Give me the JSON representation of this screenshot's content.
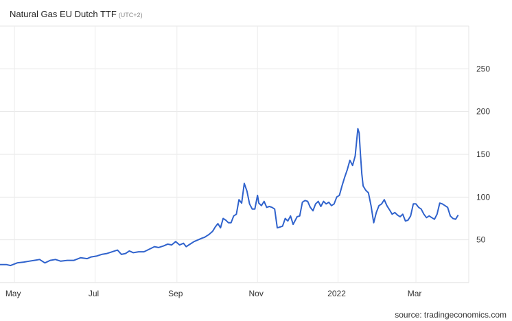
{
  "chart_data": {
    "type": "line",
    "title": "Natural Gas EU Dutch TTF",
    "timezone": "(UTC+2)",
    "source": "source: tradingeconomics.com",
    "line_color": "#2f62cc",
    "grid": true,
    "y_axis_side": "right",
    "ylim": [
      0,
      300
    ],
    "y_ticks": [
      50,
      100,
      150,
      200,
      250
    ],
    "x_ticks": [
      {
        "label": "May",
        "date": "2021-05-01"
      },
      {
        "label": "Jul",
        "date": "2021-07-01"
      },
      {
        "label": "Sep",
        "date": "2021-09-01"
      },
      {
        "label": "Nov",
        "date": "2021-11-01"
      },
      {
        "label": "2022",
        "date": "2022-01-01"
      },
      {
        "label": "Mar",
        "date": "2022-03-01"
      }
    ],
    "xlim": [
      "2021-04-20",
      "2022-04-10"
    ],
    "series": [
      {
        "points": [
          [
            "2021-04-20",
            21
          ],
          [
            "2021-04-25",
            21
          ],
          [
            "2021-04-28",
            20
          ],
          [
            "2021-05-03",
            23
          ],
          [
            "2021-05-08",
            24
          ],
          [
            "2021-05-12",
            25
          ],
          [
            "2021-05-16",
            26
          ],
          [
            "2021-05-20",
            27
          ],
          [
            "2021-05-24",
            23
          ],
          [
            "2021-05-28",
            26
          ],
          [
            "2021-06-01",
            27
          ],
          [
            "2021-06-05",
            25
          ],
          [
            "2021-06-10",
            26
          ],
          [
            "2021-06-15",
            26
          ],
          [
            "2021-06-20",
            29
          ],
          [
            "2021-06-25",
            28
          ],
          [
            "2021-06-28",
            30
          ],
          [
            "2021-07-02",
            31
          ],
          [
            "2021-07-06",
            33
          ],
          [
            "2021-07-10",
            34
          ],
          [
            "2021-07-14",
            36
          ],
          [
            "2021-07-18",
            38
          ],
          [
            "2021-07-21",
            33
          ],
          [
            "2021-07-24",
            34
          ],
          [
            "2021-07-27",
            37
          ],
          [
            "2021-07-30",
            35
          ],
          [
            "2021-08-03",
            36
          ],
          [
            "2021-08-07",
            36
          ],
          [
            "2021-08-11",
            39
          ],
          [
            "2021-08-15",
            42
          ],
          [
            "2021-08-18",
            41
          ],
          [
            "2021-08-22",
            43
          ],
          [
            "2021-08-25",
            45
          ],
          [
            "2021-08-28",
            44
          ],
          [
            "2021-08-31",
            48
          ],
          [
            "2021-09-03",
            44
          ],
          [
            "2021-09-06",
            46
          ],
          [
            "2021-09-08",
            42
          ],
          [
            "2021-09-11",
            45
          ],
          [
            "2021-09-14",
            48
          ],
          [
            "2021-09-17",
            50
          ],
          [
            "2021-09-20",
            52
          ],
          [
            "2021-09-22",
            53
          ],
          [
            "2021-09-25",
            56
          ],
          [
            "2021-09-28",
            60
          ],
          [
            "2021-09-30",
            65
          ],
          [
            "2021-10-02",
            69
          ],
          [
            "2021-10-04",
            64
          ],
          [
            "2021-10-06",
            75
          ],
          [
            "2021-10-08",
            73
          ],
          [
            "2021-10-10",
            70
          ],
          [
            "2021-10-12",
            70
          ],
          [
            "2021-10-14",
            78
          ],
          [
            "2021-10-16",
            80
          ],
          [
            "2021-10-18",
            97
          ],
          [
            "2021-10-20",
            93
          ],
          [
            "2021-10-22",
            116
          ],
          [
            "2021-10-24",
            107
          ],
          [
            "2021-10-26",
            92
          ],
          [
            "2021-10-28",
            86
          ],
          [
            "2021-10-30",
            86
          ],
          [
            "2021-11-01",
            102
          ],
          [
            "2021-11-02",
            93
          ],
          [
            "2021-11-04",
            90
          ],
          [
            "2021-11-06",
            95
          ],
          [
            "2021-11-08",
            88
          ],
          [
            "2021-11-10",
            89
          ],
          [
            "2021-11-12",
            88
          ],
          [
            "2021-11-14",
            86
          ],
          [
            "2021-11-16",
            64
          ],
          [
            "2021-11-18",
            65
          ],
          [
            "2021-11-20",
            66
          ],
          [
            "2021-11-22",
            75
          ],
          [
            "2021-11-24",
            72
          ],
          [
            "2021-11-26",
            78
          ],
          [
            "2021-11-28",
            68
          ],
          [
            "2021-12-01",
            77
          ],
          [
            "2021-12-03",
            78
          ],
          [
            "2021-12-05",
            94
          ],
          [
            "2021-12-07",
            96
          ],
          [
            "2021-12-09",
            95
          ],
          [
            "2021-12-11",
            88
          ],
          [
            "2021-12-13",
            84
          ],
          [
            "2021-12-15",
            92
          ],
          [
            "2021-12-17",
            95
          ],
          [
            "2021-12-19",
            89
          ],
          [
            "2021-12-21",
            95
          ],
          [
            "2021-12-23",
            92
          ],
          [
            "2021-12-25",
            94
          ],
          [
            "2021-12-27",
            90
          ],
          [
            "2021-12-29",
            92
          ],
          [
            "2021-12-31",
            100
          ],
          [
            "2022-01-02",
            102
          ],
          [
            "2022-01-04",
            113
          ],
          [
            "2022-01-06",
            123
          ],
          [
            "2022-01-08",
            132
          ],
          [
            "2022-01-10",
            143
          ],
          [
            "2022-01-12",
            137
          ],
          [
            "2022-01-14",
            148
          ],
          [
            "2022-01-16",
            180
          ],
          [
            "2022-01-17",
            175
          ],
          [
            "2022-01-18",
            150
          ],
          [
            "2022-01-19",
            127
          ],
          [
            "2022-01-20",
            113
          ],
          [
            "2022-01-22",
            108
          ],
          [
            "2022-01-24",
            105
          ],
          [
            "2022-01-26",
            90
          ],
          [
            "2022-01-28",
            70
          ],
          [
            "2022-01-30",
            82
          ],
          [
            "2022-02-01",
            90
          ],
          [
            "2022-02-03",
            92
          ],
          [
            "2022-02-05",
            97
          ],
          [
            "2022-02-07",
            90
          ],
          [
            "2022-02-09",
            85
          ],
          [
            "2022-02-11",
            80
          ],
          [
            "2022-02-13",
            82
          ],
          [
            "2022-02-15",
            79
          ],
          [
            "2022-02-17",
            77
          ],
          [
            "2022-02-19",
            80
          ],
          [
            "2022-02-21",
            72
          ],
          [
            "2022-02-23",
            73
          ],
          [
            "2022-02-25",
            78
          ],
          [
            "2022-02-27",
            92
          ],
          [
            "2022-03-01",
            92
          ],
          [
            "2022-03-03",
            88
          ],
          [
            "2022-03-05",
            86
          ],
          [
            "2022-03-07",
            80
          ],
          [
            "2022-03-09",
            76
          ],
          [
            "2022-03-11",
            78
          ],
          [
            "2022-03-13",
            76
          ],
          [
            "2022-03-15",
            74
          ],
          [
            "2022-03-17",
            80
          ],
          [
            "2022-03-19",
            93
          ],
          [
            "2022-03-21",
            92
          ],
          [
            "2022-03-23",
            90
          ],
          [
            "2022-03-25",
            88
          ],
          [
            "2022-03-27",
            78
          ],
          [
            "2022-03-29",
            75
          ],
          [
            "2022-03-31",
            74
          ],
          [
            "2022-04-02",
            79
          ]
        ]
      }
    ]
  }
}
